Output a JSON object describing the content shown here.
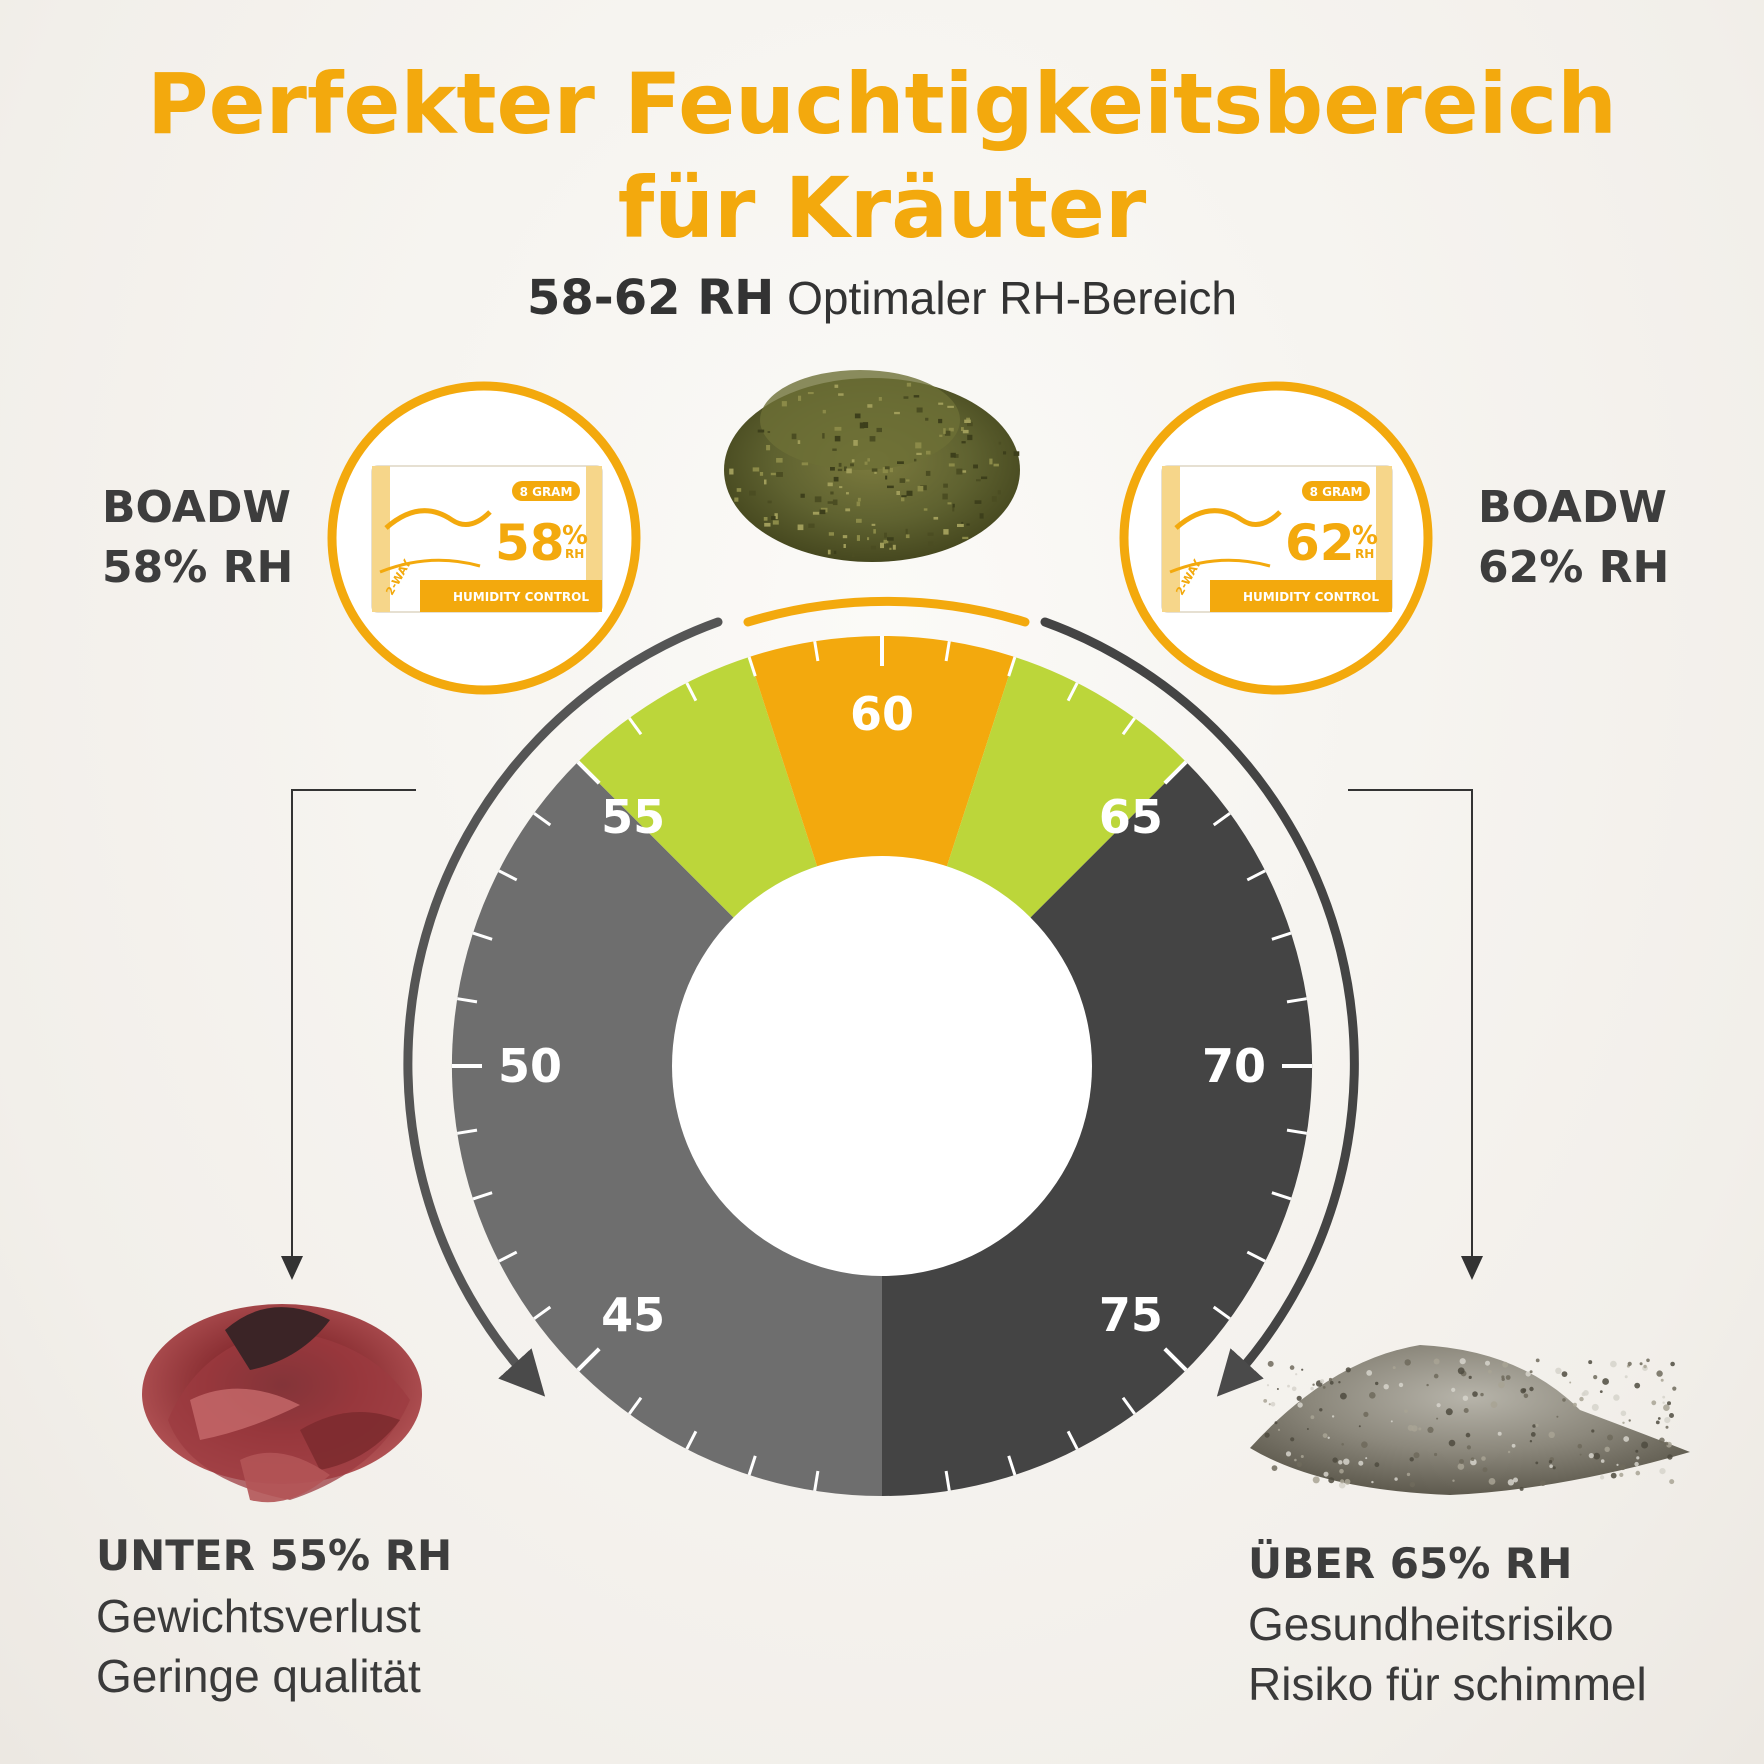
{
  "title_line1": "Perfekter Feuchtigkeitsbereich",
  "title_line2": "für Kräuter",
  "subtitle": {
    "range": "58-62 RH",
    "label": "Optimaler RH-Bereich"
  },
  "left_pack": {
    "brand": "BOADW",
    "rh": "58% RH",
    "pack_weight": "8 GRAM",
    "pack_value": "58",
    "pack_pct": "%",
    "pack_rh": "RH",
    "pack_text": "HUMIDITY CONTROL",
    "pack_way": "2-WAY"
  },
  "right_pack": {
    "brand": "BOADW",
    "rh": "62% RH",
    "pack_weight": "8 GRAM",
    "pack_value": "62",
    "pack_pct": "%",
    "pack_rh": "RH",
    "pack_text": "HUMIDITY CONTROL",
    "pack_way": "2-WAY"
  },
  "gauge": {
    "labels": [
      "45",
      "50",
      "55",
      "60",
      "65",
      "70",
      "75"
    ],
    "zones": [
      {
        "from": 40,
        "to": 55,
        "color": "#6e6e6e"
      },
      {
        "from": 55,
        "to": 58,
        "color": "#bcd63a"
      },
      {
        "from": 58,
        "to": 62,
        "color": "#f3a90d"
      },
      {
        "from": 62,
        "to": 65,
        "color": "#bcd63a"
      },
      {
        "from": 65,
        "to": 80,
        "color": "#444444"
      }
    ],
    "colors": {
      "accent": "#f3a90d",
      "green": "#bcd63a",
      "low": "#6e6e6e",
      "high": "#444444",
      "arrow": "#4a4a4a"
    }
  },
  "low_note": {
    "heading": "UNTER 55% RH",
    "line1": "Gewichtsverlust",
    "line2": "Geringe qualität"
  },
  "high_note": {
    "heading": "ÜBER 65% RH",
    "line1": "Gesundheitsrisiko",
    "line2": "Risiko für schimmel"
  },
  "images": {
    "top": "dried-herbs-pile",
    "left": "dried-rose",
    "right": "moldy-herb-pile"
  }
}
